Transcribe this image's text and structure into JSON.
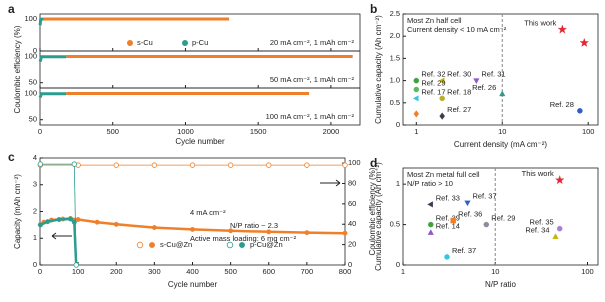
{
  "chart_data": [
    {
      "type": "line",
      "panel": "a",
      "x_label": "Cycle number",
      "y_label": "Coulombic efficiency (%)",
      "xlim": [
        0,
        2200
      ],
      "xticks": [
        0,
        500,
        1000,
        1500,
        2000
      ],
      "subplots": [
        {
          "annotation": "20 mA cm⁻², 1 mAh cm⁻²",
          "ylim": [
            0,
            115
          ],
          "yticks": [
            0,
            100
          ],
          "series": [
            {
              "name": "s-Cu",
              "color": "#f07f2a",
              "x": [
                25,
                1300
              ],
              "values": [
                99.5,
                99.5
              ]
            },
            {
              "name": "p-Cu",
              "color": "#2a9d8f",
              "x": [
                1,
                5,
                25
              ],
              "values": [
                80,
                99,
                99
              ]
            }
          ]
        },
        {
          "annotation": "50 mA cm⁻², 1 mAh cm⁻²",
          "ylim": [
            40,
            110
          ],
          "yticks": [
            50,
            100
          ],
          "series": [
            {
              "color": "#f07f2a",
              "x": [
                180,
                2150
              ],
              "values": [
                99.5,
                99.5
              ]
            },
            {
              "color": "#2a9d8f",
              "x": [
                1,
                10,
                180
              ],
              "values": [
                90,
                99,
                99
              ]
            }
          ]
        },
        {
          "annotation": "100 mA cm⁻², 1 mAh cm⁻²",
          "ylim": [
            40,
            110
          ],
          "yticks": [
            50,
            100
          ],
          "series": [
            {
              "color": "#f07f2a",
              "x": [
                180,
                1850
              ],
              "values": [
                99.5,
                99.5
              ]
            },
            {
              "color": "#2a9d8f",
              "x": [
                1,
                10,
                180
              ],
              "values": [
                92,
                99,
                99
              ]
            }
          ]
        }
      ]
    },
    {
      "type": "scatter",
      "panel": "b",
      "x_label": "Current density (mA cm⁻²)",
      "y_label": "Cumulative capacity (Ah cm⁻²)",
      "xlog": true,
      "xlim": [
        0.7,
        130
      ],
      "xticks": [
        1,
        10,
        100
      ],
      "ylim": [
        0,
        2.5
      ],
      "yticks": [
        0,
        0.5,
        {
          "value": 1,
          "label": "1.0"
        },
        1.5,
        {
          "value": 2,
          "label": "2.0"
        },
        2.5
      ],
      "vline": 10,
      "annotations": [
        "Most Zn half cell",
        "Current density < 10 mA cm⁻²"
      ],
      "series": [
        {
          "name": "This work",
          "color": "#e3262f",
          "marker": "star",
          "x": [
            50,
            90
          ],
          "values": [
            2.15,
            1.85
          ]
        },
        {
          "name": "Ref. 32",
          "color": "#3aa63a",
          "marker": "circle",
          "x": [
            1
          ],
          "values": [
            1.0
          ]
        },
        {
          "name": "Ref. 30",
          "color": "#c8b400",
          "marker": "triangle-left",
          "x": [
            2
          ],
          "values": [
            1.0
          ]
        },
        {
          "name": "Ref. 31",
          "color": "#8a5cc7",
          "marker": "triangle-down",
          "x": [
            5
          ],
          "values": [
            1.0
          ]
        },
        {
          "name": "Ref. 29",
          "color": "#5cb85c",
          "marker": "circle",
          "x": [
            1
          ],
          "values": [
            0.8
          ]
        },
        {
          "name": "Ref. 18",
          "color": "#b9b02a",
          "marker": "circle",
          "x": [
            2
          ],
          "values": [
            0.6
          ]
        },
        {
          "name": "Ref. 17",
          "color": "#35c6e0",
          "marker": "triangle-left",
          "x": [
            1
          ],
          "values": [
            0.6
          ]
        },
        {
          "name": "Ref. 26",
          "color": "#2a9d8f",
          "marker": "triangle",
          "x": [
            10
          ],
          "values": [
            0.7
          ]
        },
        {
          "name": "Ref. 27",
          "color": "#3b3b4f",
          "marker": "diamond",
          "x": [
            2
          ],
          "values": [
            0.2
          ]
        },
        {
          "name": "Ref. 28",
          "color": "#2f5fc4",
          "marker": "circle",
          "x": [
            80
          ],
          "values": [
            0.32
          ]
        },
        {
          "color": "#f07f2a",
          "marker": "diamond",
          "x": [
            1
          ],
          "values": [
            0.25
          ]
        }
      ]
    },
    {
      "type": "dual",
      "panel": "c",
      "x_label": "Cycle number",
      "y_label": "Capacity (mAh cm⁻²)",
      "y2_label": "Coulombic efficiency (%)",
      "xlim": [
        0,
        800
      ],
      "xticks": [
        0,
        100,
        200,
        300,
        400,
        500,
        600,
        700,
        800
      ],
      "ylim": [
        0,
        4
      ],
      "yticks": [
        0,
        1,
        2,
        3,
        4
      ],
      "y2lim": [
        0,
        105
      ],
      "y2ticks": [
        0,
        20,
        40,
        60,
        80,
        100
      ],
      "annotations": [
        "4 mA cm⁻²",
        "N/P ratio ~ 2.3",
        "Active mass loading: 6 mg cm⁻²"
      ],
      "series": [
        {
          "name": "s-Cu@Zn",
          "color": "#f07f2a",
          "x": [
            1,
            10,
            30,
            60,
            80,
            100,
            150,
            200,
            300,
            400,
            500,
            600,
            700,
            800
          ],
          "values": [
            1.5,
            1.6,
            1.68,
            1.72,
            1.74,
            1.7,
            1.6,
            1.52,
            1.4,
            1.33,
            1.28,
            1.24,
            1.21,
            1.19
          ]
        },
        {
          "name": "p-Cu@Zn",
          "color": "#2a9d8f",
          "x": [
            1,
            20,
            50,
            80,
            90,
            95
          ],
          "values": [
            1.5,
            1.62,
            1.7,
            1.72,
            1.6,
            0
          ]
        },
        {
          "color": "#f07f2a",
          "axis": "y2",
          "x": [
            1,
            100,
            200,
            300,
            400,
            500,
            600,
            700,
            800
          ],
          "values": [
            98,
            98,
            98,
            98,
            98,
            98,
            98,
            98,
            98
          ]
        },
        {
          "color": "#2a9d8f",
          "axis": "y2",
          "x": [
            1,
            90,
            95
          ],
          "values": [
            99,
            99,
            0
          ]
        }
      ]
    },
    {
      "type": "scatter",
      "panel": "d",
      "x_label": "N/P ratio",
      "y_label": "Cumulative capacity (Ah cm⁻²)",
      "xlog": true,
      "xlim": [
        1,
        130
      ],
      "xticks": [
        1,
        10,
        100
      ],
      "ylim": [
        0,
        1.2
      ],
      "yticks": [
        0,
        0.5,
        1
      ],
      "vline": 10,
      "annotations": [
        "Most Zn metal full cell",
        "N/P ratio > 10"
      ],
      "series": [
        {
          "name": "This work",
          "color": "#e3262f",
          "marker": "star",
          "x": [
            50
          ],
          "values": [
            1.05
          ]
        },
        {
          "name": "Ref. 33",
          "color": "#3b3b4f",
          "marker": "triangle-left",
          "x": [
            2
          ],
          "values": [
            0.75
          ]
        },
        {
          "name": "Ref. 37",
          "color": "#2f5fc4",
          "marker": "triangle-down",
          "x": [
            5
          ],
          "values": [
            0.77
          ]
        },
        {
          "name": "Ref. 39",
          "color": "#3aa63a",
          "marker": "circle",
          "x": [
            2
          ],
          "values": [
            0.5
          ]
        },
        {
          "name": "Ref. 36",
          "color": "#f07f2a",
          "marker": "square",
          "x": [
            3.5
          ],
          "values": [
            0.55
          ]
        },
        {
          "name": "Ref. 14",
          "color": "#8a5cc7",
          "marker": "triangle",
          "x": [
            2
          ],
          "values": [
            0.4
          ]
        },
        {
          "name": "Ref. 29",
          "color": "#8c8c9c",
          "marker": "circle",
          "x": [
            8
          ],
          "values": [
            0.5
          ]
        },
        {
          "name": "Ref. 37",
          "color": "#35c6e0",
          "marker": "circle",
          "x": [
            3
          ],
          "values": [
            0.1
          ]
        },
        {
          "name": "Ref. 35",
          "color": "#a77fd6",
          "marker": "circle",
          "x": [
            50
          ],
          "values": [
            0.45
          ]
        },
        {
          "name": "Ref. 34",
          "color": "#c8b400",
          "marker": "triangle",
          "x": [
            45
          ],
          "values": [
            0.35
          ]
        }
      ]
    }
  ]
}
